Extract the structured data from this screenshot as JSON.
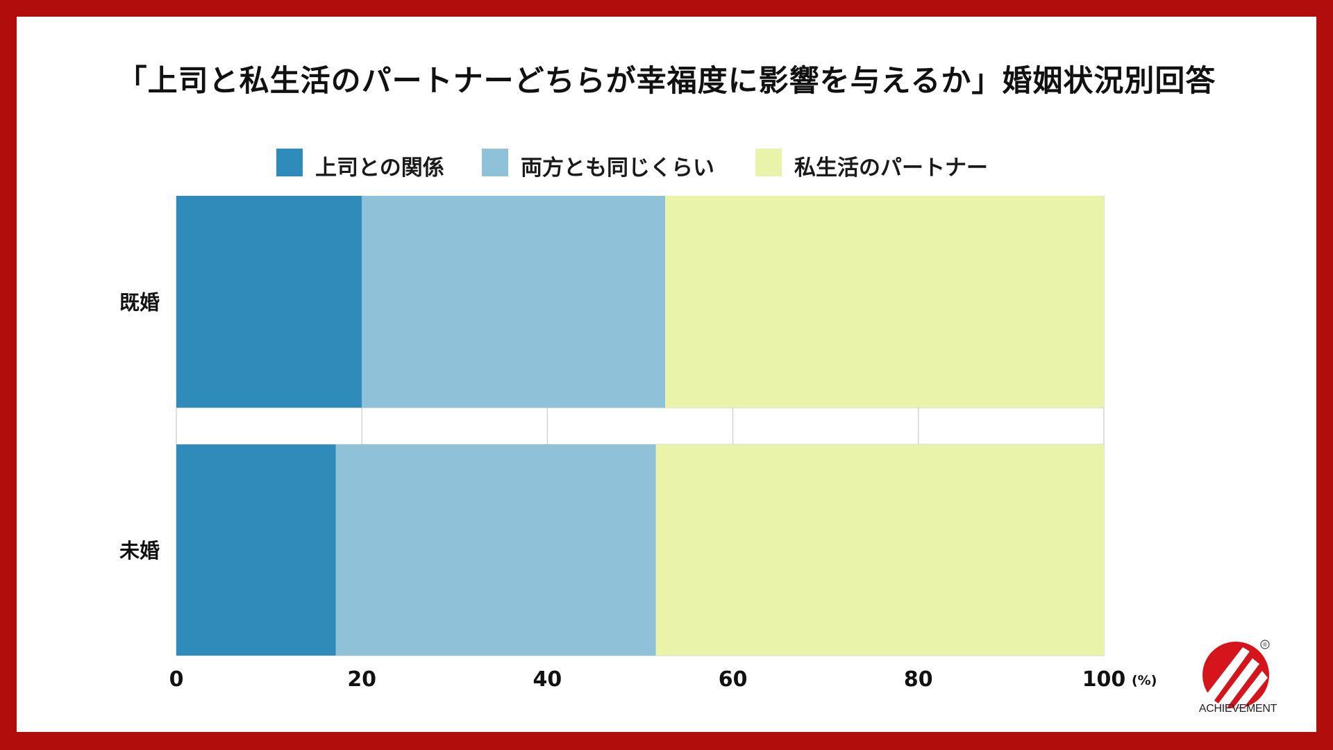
{
  "colors": {
    "frame": "#b20d0d",
    "background": "#ffffff",
    "series_1": "#2e8bba",
    "series_2": "#8fc1d8",
    "series_3": "#e9f3a9",
    "grid": "#cccccc"
  },
  "logo": {
    "name": "ACHIEVEMENT",
    "registered_mark": "®"
  },
  "chart_data": {
    "type": "bar",
    "orientation": "horizontal",
    "stacked": true,
    "title": "「上司と私生活のパートナーどちらが幸福度に影響を与えるか」婚姻状況別回答",
    "categories": [
      "既婚",
      "未婚"
    ],
    "series": [
      {
        "name": "上司との関係",
        "values": [
          20.0,
          17.2
        ]
      },
      {
        "name": "両方とも同じくらい",
        "values": [
          32.7,
          34.5
        ]
      },
      {
        "name": "私生活のパートナー",
        "values": [
          47.3,
          48.3
        ]
      }
    ],
    "xlim": [
      0,
      100
    ],
    "xticks": [
      "0",
      "20",
      "40",
      "60",
      "80",
      "100"
    ],
    "xunit": "(%)",
    "grid": true,
    "legend": "top-center"
  }
}
